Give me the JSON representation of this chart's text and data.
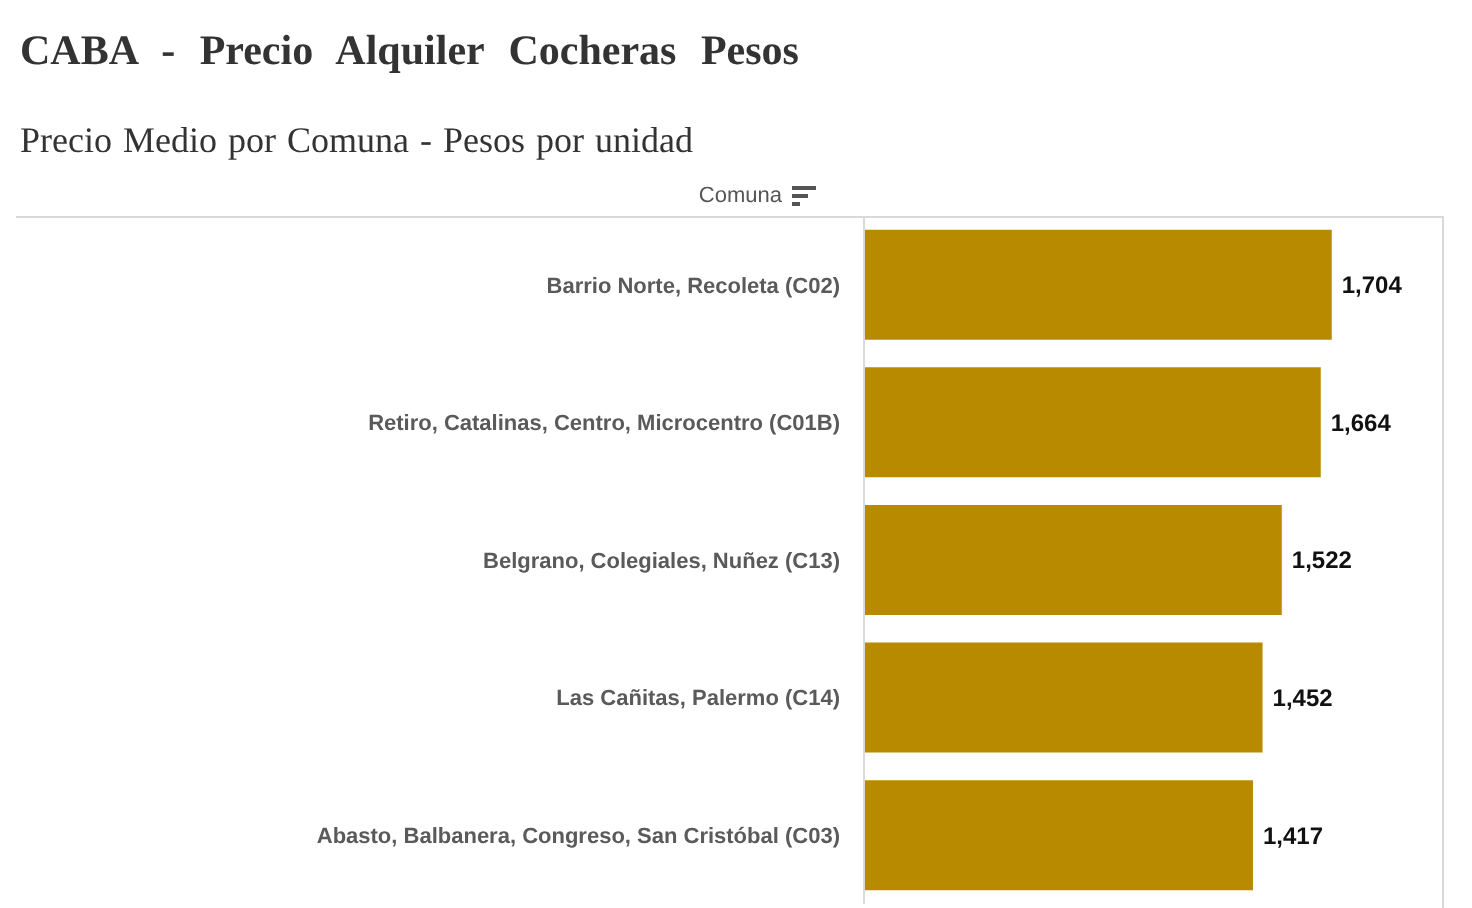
{
  "chart_data": {
    "type": "bar",
    "orientation": "horizontal",
    "title": "CABA - Precio Alquiler Cocheras Pesos",
    "subtitle": "Precio Medio por Comuna - Pesos por unidad",
    "ylabel": "Comuna",
    "categories": [
      "Barrio Norte, Recoleta (C02)",
      "Retiro, Catalinas, Centro, Microcentro (C01B)",
      "Belgrano, Colegiales, Nuñez (C13)",
      "Las Cañitas, Palermo (C14)",
      "Abasto, Balbanera, Congreso, San Cristóbal (C03)"
    ],
    "values": [
      1704,
      1664,
      1522,
      1452,
      1417
    ],
    "value_labels": [
      "1,704",
      "1,664",
      "1,522",
      "1,452",
      "1,417"
    ],
    "color": "#b88a00",
    "tick_labels": "y"
  }
}
